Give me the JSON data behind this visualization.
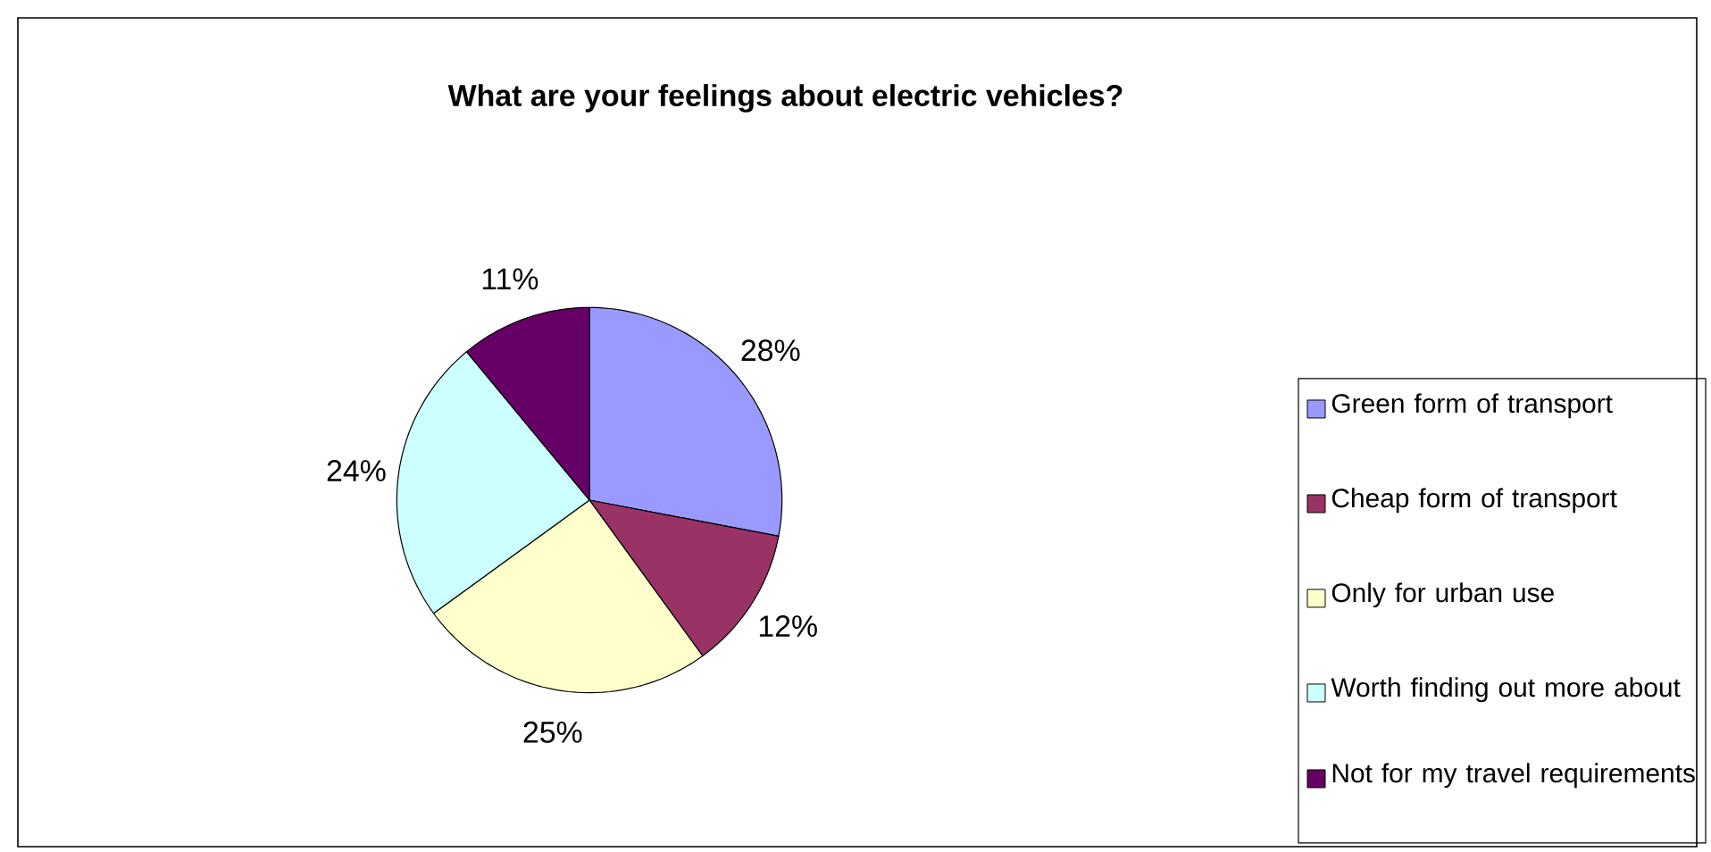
{
  "chart_data": {
    "type": "pie",
    "title": "What are your feelings about electric vehicles?",
    "categories": [
      "Green form of transport",
      "Cheap form of transport",
      "Only for urban use",
      "Worth finding out more about",
      "Not for my travel requirements"
    ],
    "values": [
      28,
      12,
      25,
      24,
      11
    ],
    "colors": [
      "#9999ff",
      "#993366",
      "#ffffcc",
      "#ccffff",
      "#660066"
    ],
    "value_labels": [
      "28%",
      "12%",
      "25%",
      "24%",
      "11%"
    ],
    "legend": "right"
  }
}
